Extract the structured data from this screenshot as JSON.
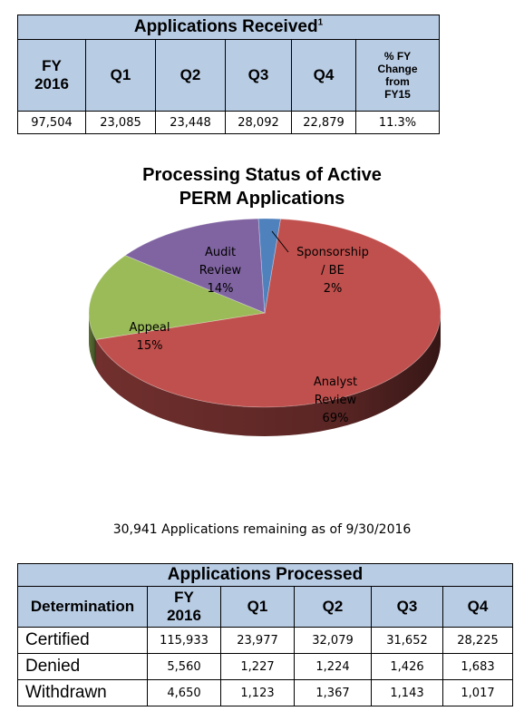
{
  "received_table": {
    "title": "Applications Received",
    "footnote": "1",
    "headers": [
      "FY 2016",
      "Q1",
      "Q2",
      "Q3",
      "Q4",
      "% FY Change from FY15"
    ],
    "header_lines": {
      "fy": [
        "FY",
        "2016"
      ],
      "change": [
        "% FY",
        "Change",
        "from",
        "FY15"
      ]
    },
    "values": [
      "97,504",
      "23,085",
      "23,448",
      "28,092",
      "22,879",
      "11.3%"
    ]
  },
  "chart_data": {
    "type": "pie",
    "title_lines": [
      "Processing Status of Active",
      "PERM Applications"
    ],
    "slices": [
      {
        "label_lines": [
          "Analyst",
          "Review"
        ],
        "pct_label": "69%",
        "value": 69,
        "color": "#c0504d"
      },
      {
        "label_lines": [
          "Appeal"
        ],
        "pct_label": "15%",
        "value": 15,
        "color": "#9bbb59"
      },
      {
        "label_lines": [
          "Audit",
          "Review"
        ],
        "pct_label": "14%",
        "value": 14,
        "color": "#8064a2"
      },
      {
        "label_lines": [
          "Sponsorship",
          "/ BE"
        ],
        "pct_label": "2%",
        "value": 2,
        "color": "#4f81bd"
      }
    ],
    "legend": "none",
    "style": "3d"
  },
  "remaining_note": "30,941 Applications remaining as of 9/30/2016",
  "processed_table": {
    "title": "Applications Processed",
    "headers": [
      "Determination",
      "FY 2016",
      "Q1",
      "Q2",
      "Q3",
      "Q4"
    ],
    "fy_lines": [
      "FY",
      "2016"
    ],
    "rows": [
      {
        "label": "Certified",
        "values": [
          "115,933",
          "23,977",
          "32,079",
          "31,652",
          "28,225"
        ]
      },
      {
        "label": "Denied",
        "values": [
          "5,560",
          "1,227",
          "1,224",
          "1,426",
          "1,683"
        ]
      },
      {
        "label": "Withdrawn",
        "values": [
          "4,650",
          "1,123",
          "1,367",
          "1,143",
          "1,017"
        ]
      }
    ]
  }
}
